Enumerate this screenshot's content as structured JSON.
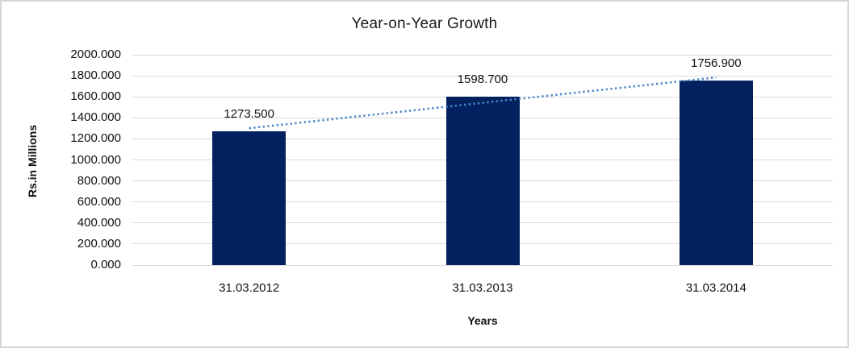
{
  "chart_data": {
    "type": "bar",
    "title": "Year-on-Year Growth",
    "xlabel": "Years",
    "ylabel": "Rs.in Millions",
    "categories": [
      "31.03.2012",
      "31.03.2013",
      "31.03.2014"
    ],
    "values": [
      1273.5,
      1598.7,
      1756.9
    ],
    "value_labels": [
      "1273.500",
      "1598.700",
      "1756.900"
    ],
    "ylim": [
      0,
      2000
    ],
    "ytick_step": 200,
    "ytick_labels": [
      "0.000",
      "200.000",
      "400.000",
      "600.000",
      "800.000",
      "1000.000",
      "1200.000",
      "1400.000",
      "1600.000",
      "1800.000",
      "2000.000"
    ],
    "grid": "horizontal",
    "legend": "none",
    "bar_color": "#02215e",
    "gridline_color": "#d9d9d9",
    "trendline": {
      "type": "linear",
      "style": "dotted",
      "color": "#4a86c8"
    },
    "frame_border_color": "#d6d6d6",
    "background": "#ffffff"
  }
}
